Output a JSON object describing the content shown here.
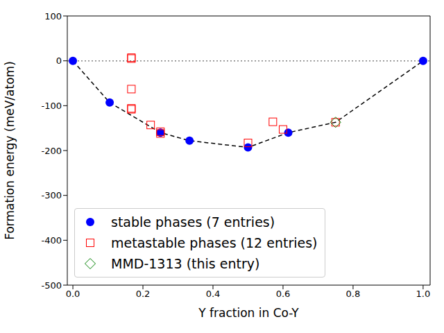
{
  "chart_data": {
    "type": "scatter",
    "xlabel": "Y fraction in Co-Y",
    "ylabel": "Formation energy (meV/atom)",
    "xlim": [
      -0.016,
      1.02
    ],
    "ylim": [
      -500,
      100
    ],
    "xticks": [
      {
        "value": 0,
        "label": "0.0"
      },
      {
        "value": 0.2,
        "label": "0.2"
      },
      {
        "value": 0.4,
        "label": "0.4"
      },
      {
        "value": 0.6,
        "label": "0.6"
      },
      {
        "value": 0.8,
        "label": "0.8"
      },
      {
        "value": 1,
        "label": "1.0"
      }
    ],
    "yticks": [
      -500,
      -400,
      -300,
      -200,
      -100,
      0,
      100
    ],
    "hline": 0,
    "legend": "lower left",
    "series": [
      {
        "type": "line",
        "color": "#000000",
        "line_style": "dashed",
        "x": [
          0,
          0.105,
          0.25,
          0.333,
          0.5,
          0.615,
          0.75,
          1
        ],
        "y": [
          0,
          -93,
          -160,
          -178,
          -193,
          -160,
          -137,
          0
        ]
      },
      {
        "name": "stable phases (7 entries)",
        "type": "scatter",
        "marker": "circle",
        "color": "#0000ff",
        "x": [
          0,
          0.105,
          0.25,
          0.333,
          0.5,
          0.615,
          1
        ],
        "y": [
          0,
          -93,
          -160,
          -178,
          -193,
          -160,
          0
        ]
      },
      {
        "name": "metastable phases (12 entries)",
        "type": "scatter",
        "marker": "square",
        "color": "#ff0000",
        "x": [
          0.167,
          0.167,
          0.167,
          0.167,
          0.167,
          0.222,
          0.25,
          0.25,
          0.5,
          0.571,
          0.6,
          0.75
        ],
        "y": [
          5,
          7,
          -63,
          -106,
          -108,
          -143,
          -158,
          -162,
          -183,
          -136,
          -153,
          -137
        ]
      },
      {
        "name": "MMD-1313 (this entry)",
        "type": "scatter",
        "marker": "diamond",
        "color": "#008000",
        "x": [
          0.75
        ],
        "y": [
          -137
        ]
      }
    ]
  }
}
